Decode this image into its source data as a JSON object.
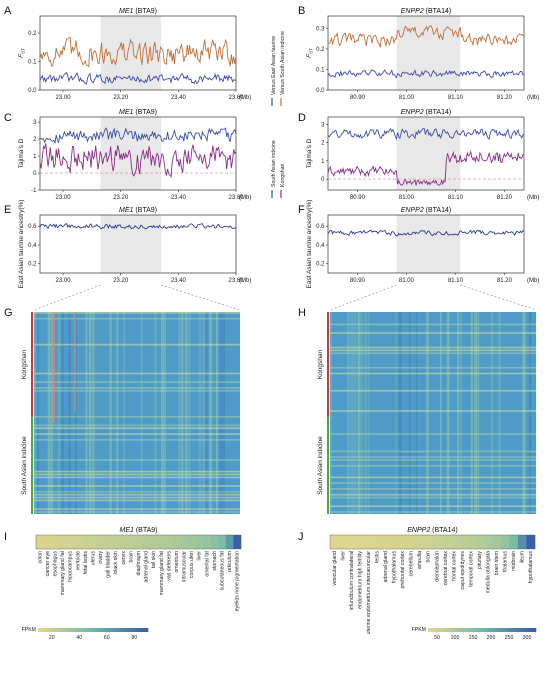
{
  "panel_labels": [
    "A",
    "B",
    "C",
    "D",
    "E",
    "F",
    "G",
    "H",
    "I",
    "J"
  ],
  "colors": {
    "ea_taurine": "#3d4ea8",
    "sa_indicine_fst": "#c0703a",
    "sa_indicine_td": "#3d4ea8",
    "kongshan_td": "#8b2d8a",
    "ancestry": "#2c3f96",
    "highlight": "#e8e8e8",
    "kongshan_bar": "#c23b3b",
    "sa_bar": "#4aa84a"
  },
  "legends": {
    "fst": [
      "Versus East Asian taurine",
      "Versus South Asian indicine"
    ],
    "tajima": [
      "South Asian indicine",
      "Kongshan"
    ]
  },
  "heatmap_labels": {
    "top": "Kongshan",
    "bottom": "South Asian indicine"
  },
  "chart_data": [
    {
      "id": "A",
      "type": "line",
      "gene": "ME1",
      "chr": "(BTA9)",
      "ylabel": "FST",
      "xunit": "(Mb)",
      "xticks": [
        "23.00",
        "23.20",
        "23.40",
        "23.60"
      ],
      "xlim": [
        22.92,
        23.6
      ],
      "yticks": [
        "0.0",
        "0.1",
        "0.2"
      ],
      "ylim": [
        0,
        0.26
      ],
      "highlight": [
        23.13,
        23.34
      ],
      "series": [
        {
          "name": "Versus East Asian taurine",
          "color": "#3d4ea8",
          "mean": 0.04,
          "amp": 0.025
        },
        {
          "name": "Versus South Asian indicine",
          "color": "#c0703a",
          "mean": 0.13,
          "amp": 0.07
        }
      ]
    },
    {
      "id": "B",
      "type": "line",
      "gene": "ENPP2",
      "chr": "(BTA14)",
      "ylabel": "FST",
      "xunit": "(Mb)",
      "xticks": [
        "80.90",
        "81.00",
        "81.10",
        "81.20"
      ],
      "xlim": [
        80.84,
        81.24
      ],
      "yticks": [
        "0.0",
        "0.1",
        "0.2",
        "0.3"
      ],
      "ylim": [
        0,
        0.36
      ],
      "highlight": [
        80.98,
        81.11
      ],
      "series": [
        {
          "name": "Versus East Asian taurine",
          "color": "#3d4ea8",
          "mean": 0.08,
          "amp": 0.025
        },
        {
          "name": "Versus South Asian indicine",
          "color": "#c0703a",
          "mean": 0.24,
          "amp": 0.05
        }
      ]
    },
    {
      "id": "C",
      "type": "line",
      "gene": "ME1",
      "chr": "(BTA9)",
      "ylabel": "Tajima's D",
      "xunit": "(Mb)",
      "xticks": [
        "23.00",
        "23.20",
        "23.40",
        "23.60"
      ],
      "xlim": [
        22.92,
        23.6
      ],
      "yticks": [
        "-1",
        "0",
        "1",
        "2",
        "3"
      ],
      "ylim": [
        -1,
        3.3
      ],
      "highlight": [
        23.13,
        23.34
      ],
      "series": [
        {
          "name": "South Asian indicine",
          "color": "#3d4ea8",
          "mean": 2.2,
          "amp": 0.6
        },
        {
          "name": "Kongshan",
          "color": "#8b2d8a",
          "mean": 0.9,
          "amp": 1.3
        }
      ]
    },
    {
      "id": "D",
      "type": "line",
      "gene": "ENPP2",
      "chr": "(BTA14)",
      "ylabel": "Tajima's D",
      "xunit": "(Mb)",
      "xticks": [
        "80.90",
        "81.00",
        "81.10",
        "81.20"
      ],
      "xlim": [
        80.84,
        81.24
      ],
      "yticks": [
        "0",
        "1",
        "2",
        "3"
      ],
      "ylim": [
        -0.6,
        3.4
      ],
      "highlight": [
        80.98,
        81.11
      ],
      "series": [
        {
          "name": "South Asian indicine",
          "color": "#3d4ea8",
          "mean": 2.5,
          "amp": 0.4
        },
        {
          "name": "Kongshan",
          "color": "#8b2d8a",
          "mean": 0.4,
          "amp": 0.4
        }
      ]
    },
    {
      "id": "E",
      "type": "line",
      "gene": "ME1",
      "chr": "(BTA9)",
      "ylabel": "East Asian taurine ancestry(%)",
      "xunit": "(Mb)",
      "xticks": [
        "23.00",
        "23.20",
        "23.40",
        "23.60"
      ],
      "xlim": [
        22.92,
        23.6
      ],
      "yticks": [
        "0.2",
        "0.4",
        "0.6"
      ],
      "ylim": [
        0.1,
        0.72
      ],
      "highlight": [
        23.13,
        23.34
      ],
      "series": [
        {
          "name": "",
          "color": "#2c3f96",
          "mean": 0.6,
          "amp": 0.04
        }
      ]
    },
    {
      "id": "F",
      "type": "line",
      "gene": "ENPP2",
      "chr": "(BTA14)",
      "ylabel": "East Asian taurine ancestry(%)",
      "xunit": "(Mb)",
      "xticks": [
        "80.90",
        "81.00",
        "81.10",
        "81.20"
      ],
      "xlim": [
        80.84,
        81.24
      ],
      "yticks": [
        "0.2",
        "0.4",
        "0.6"
      ],
      "ylim": [
        0.1,
        0.72
      ],
      "highlight": [
        80.98,
        81.11
      ],
      "series": [
        {
          "name": "",
          "color": "#2c3f96",
          "mean": 0.53,
          "amp": 0.04
        }
      ]
    },
    {
      "id": "I",
      "type": "heatmap",
      "gene": "ME1",
      "chr": "(BTA9)",
      "legend_title": "FPKM",
      "legend_ticks": [
        "20",
        "40",
        "60",
        "80"
      ],
      "categories": [
        "colon",
        "cancer eye",
        "esophagus",
        "mammary gland fat",
        "hippocampus",
        "ventricle",
        "fetal testis",
        "uterus",
        "ovary",
        "gall bladder",
        "black skin",
        "cervix",
        "brain",
        "diaphragm",
        "adrenal gland",
        "tail skin",
        "mammary gland fat",
        "vas deferens",
        "omentum",
        "intramuscular",
        "corpus uteri",
        "liver",
        "omental fat",
        "stomach",
        "subcutaneous fat",
        "reticulum",
        "eyelids none pigmentation"
      ],
      "values": [
        3,
        4,
        5,
        6,
        7,
        8,
        9,
        10,
        11,
        12,
        13,
        14,
        15,
        16,
        17,
        18,
        19,
        20,
        22,
        24,
        26,
        28,
        31,
        34,
        40,
        60,
        90
      ]
    },
    {
      "id": "J",
      "type": "heatmap",
      "gene": "ENPP2",
      "chr": "(BTA14)",
      "legend_title": "FPKM",
      "legend_ticks": [
        "50",
        "100",
        "150",
        "200",
        "250",
        "300"
      ],
      "categories": [
        "vesicular gland",
        "liver",
        "infundibulum contralateral",
        "endometrium high fertility",
        "uterine endometrium intercaruncular",
        "testis",
        "adrenal gland",
        "hypothalamus",
        "prefrontal cortex",
        "cerebellum",
        "ampulla",
        "brain",
        "diencephalon",
        "cerebral cortex",
        "frontal cortex",
        "caput epididymis",
        "temporal cortex",
        "pituitary",
        "medulla oblongata",
        "brain stem",
        "thalamus",
        "midbrain",
        "ileum",
        "hypothalamus"
      ],
      "values": [
        5,
        6,
        8,
        9,
        10,
        12,
        13,
        15,
        18,
        20,
        24,
        28,
        32,
        36,
        40,
        46,
        52,
        60,
        70,
        82,
        100,
        140,
        220,
        300
      ]
    }
  ]
}
